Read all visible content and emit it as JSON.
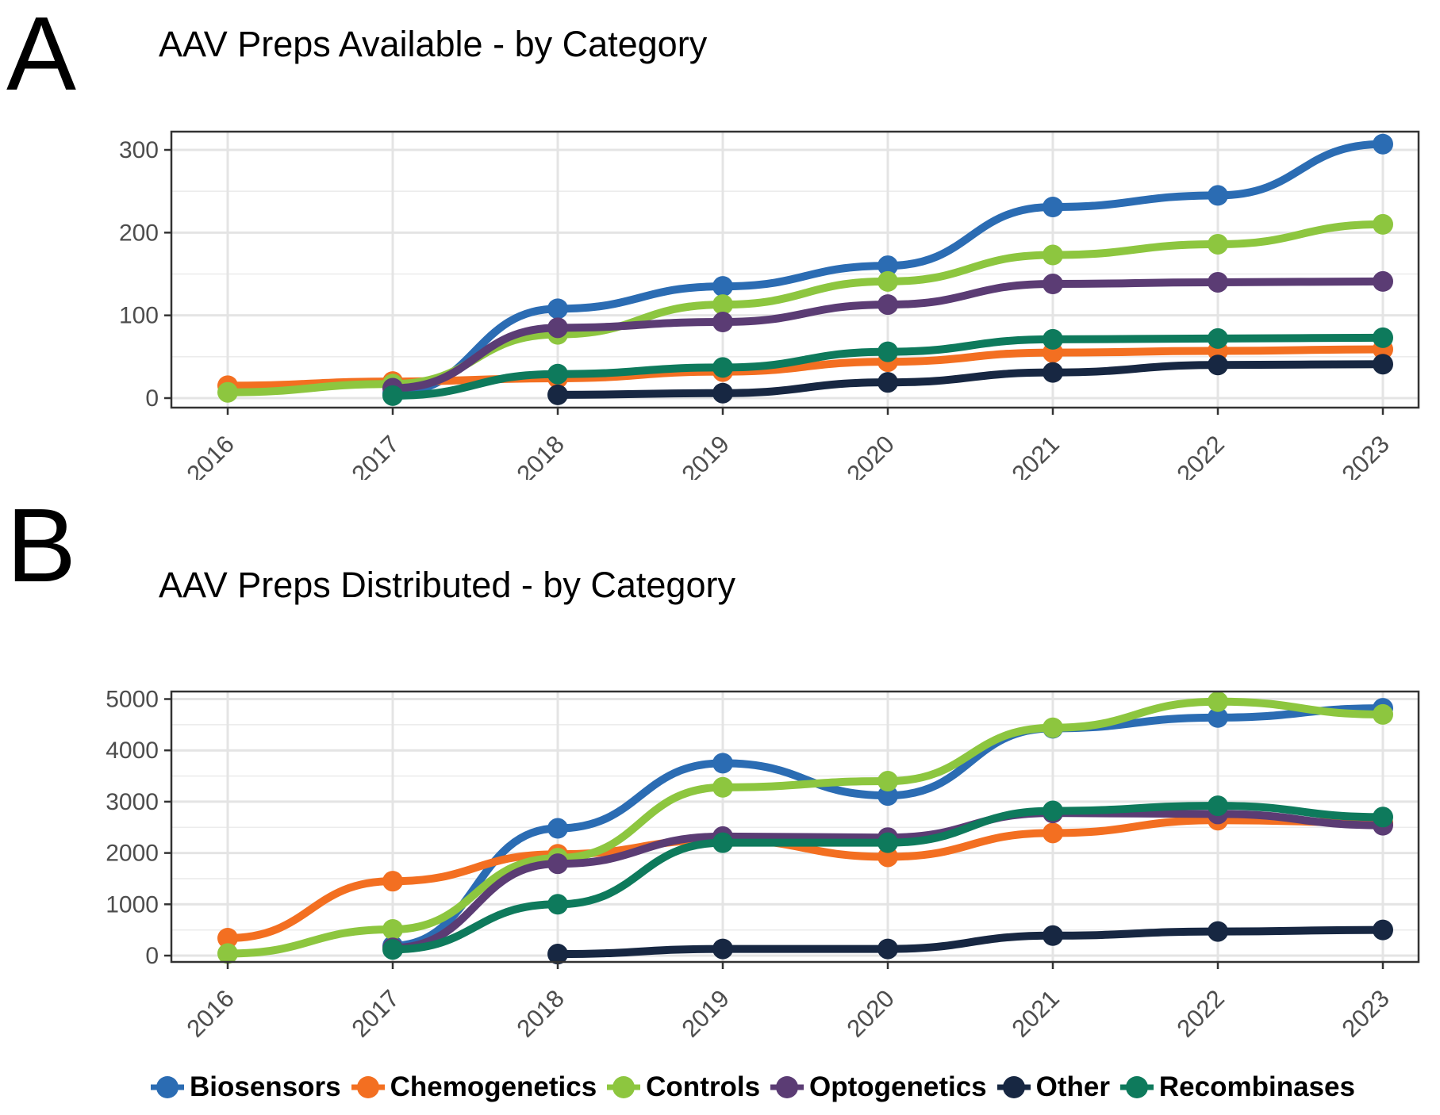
{
  "page_title": "AAV prep charts",
  "legend": {
    "items": [
      {
        "label": "Biosensors"
      },
      {
        "label": "Chemogenetics"
      },
      {
        "label": "Controls"
      },
      {
        "label": "Optogenetics"
      },
      {
        "label": "Other"
      },
      {
        "label": "Recombinases"
      }
    ]
  },
  "colors": {
    "grid_major": "#e4e4e4",
    "grid_minor": "#ececec",
    "panel_border": "#333333",
    "tick_label": "#4d4d4d",
    "panel_bg": "#ffffff"
  },
  "chart_data": [
    {
      "id": "available",
      "type": "line",
      "panel_label": "A",
      "title": "AAV Preps Available - by Category",
      "x": [
        2016,
        2017,
        2018,
        2019,
        2020,
        2021,
        2022,
        2023
      ],
      "x_tick_labels": [
        "2016",
        "2017",
        "2018",
        "2019",
        "2020",
        "2021",
        "2022",
        "2023"
      ],
      "ylim": [
        0,
        320
      ],
      "y_ticks": [
        0,
        100,
        200,
        300
      ],
      "y_minor_ticks": [
        50,
        150,
        250
      ],
      "grid": true,
      "legend_position": "bottom-shared",
      "series": [
        {
          "name": "Biosensors",
          "color": "#2b6cb3",
          "values": [
            null,
            6,
            108,
            135,
            160,
            231,
            245,
            307
          ]
        },
        {
          "name": "Chemogenetics",
          "color": "#f36f21",
          "values": [
            15,
            20,
            24,
            32,
            44,
            55,
            57,
            59
          ]
        },
        {
          "name": "Controls",
          "color": "#8dc63f",
          "values": [
            7,
            17,
            77,
            113,
            141,
            173,
            186,
            210
          ]
        },
        {
          "name": "Optogenetics",
          "color": "#5b3c74",
          "values": [
            null,
            12,
            85,
            92,
            113,
            138,
            140,
            141
          ]
        },
        {
          "name": "Other",
          "color": "#172742",
          "values": [
            null,
            null,
            4,
            6,
            19,
            31,
            40,
            41
          ]
        },
        {
          "name": "Recombinases",
          "color": "#0e7a5c",
          "values": [
            null,
            3,
            29,
            37,
            56,
            71,
            72,
            73
          ]
        }
      ]
    },
    {
      "id": "distributed",
      "type": "line",
      "panel_label": "B",
      "title": "AAV Preps Distributed - by Category",
      "x": [
        2016,
        2017,
        2018,
        2019,
        2020,
        2021,
        2022,
        2023
      ],
      "x_tick_labels": [
        "2016",
        "2017",
        "2018",
        "2019",
        "2020",
        "2021",
        "2022",
        "2023"
      ],
      "ylim": [
        0,
        5150
      ],
      "y_ticks": [
        0,
        1000,
        2000,
        3000,
        4000,
        5000
      ],
      "y_minor_ticks": [
        500,
        1500,
        2500,
        3500,
        4500
      ],
      "grid": true,
      "legend_position": "bottom-shared",
      "series": [
        {
          "name": "Biosensors",
          "color": "#2b6cb3",
          "values": [
            null,
            190,
            2480,
            3750,
            3120,
            4430,
            4640,
            4820
          ]
        },
        {
          "name": "Chemogenetics",
          "color": "#f36f21",
          "values": [
            340,
            1450,
            1975,
            2260,
            1925,
            2390,
            2640,
            2590
          ]
        },
        {
          "name": "Controls",
          "color": "#8dc63f",
          "values": [
            40,
            510,
            1900,
            3280,
            3400,
            4440,
            4950,
            4700
          ]
        },
        {
          "name": "Optogenetics",
          "color": "#5b3c74",
          "values": [
            null,
            150,
            1790,
            2320,
            2300,
            2780,
            2760,
            2540
          ]
        },
        {
          "name": "Other",
          "color": "#172742",
          "values": [
            null,
            null,
            30,
            130,
            130,
            390,
            470,
            500
          ]
        },
        {
          "name": "Recombinases",
          "color": "#0e7a5c",
          "values": [
            null,
            120,
            1000,
            2200,
            2200,
            2820,
            2920,
            2700
          ]
        }
      ]
    }
  ]
}
